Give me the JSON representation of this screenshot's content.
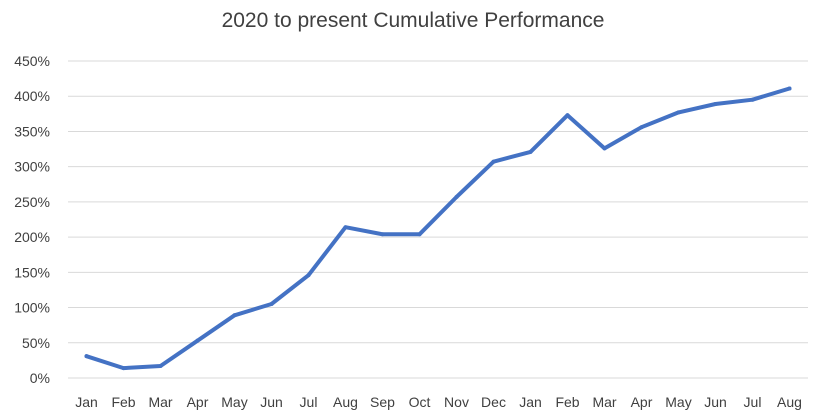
{
  "chart_data": {
    "type": "line",
    "title": "2020 to present Cumulative Performance",
    "xlabel": "",
    "ylabel": "",
    "categories": [
      "Jan",
      "Feb",
      "Mar",
      "Apr",
      "May",
      "Jun",
      "Jul",
      "Aug",
      "Sep",
      "Oct",
      "Nov",
      "Dec",
      "Jan",
      "Feb",
      "Mar",
      "Apr",
      "May",
      "Jun",
      "Jul",
      "Aug"
    ],
    "series": [
      {
        "values": [
          31,
          14,
          17,
          53,
          89,
          105,
          146,
          214,
          204,
          204,
          257,
          307,
          321,
          373,
          326,
          356,
          377,
          389,
          395,
          411
        ],
        "color": "#4472c4"
      }
    ],
    "ylim": [
      0,
      450
    ],
    "yticks": [
      {
        "value": 0,
        "label": "0%"
      },
      {
        "value": 50,
        "label": "50%"
      },
      {
        "value": 100,
        "label": "100%"
      },
      {
        "value": 150,
        "label": "150%"
      },
      {
        "value": 200,
        "label": "200%"
      },
      {
        "value": 250,
        "label": "250%"
      },
      {
        "value": 300,
        "label": "300%"
      },
      {
        "value": 350,
        "label": "350%"
      },
      {
        "value": 400,
        "label": "400%"
      },
      {
        "value": 450,
        "label": "450%"
      }
    ],
    "grid": true,
    "legend": "none"
  }
}
